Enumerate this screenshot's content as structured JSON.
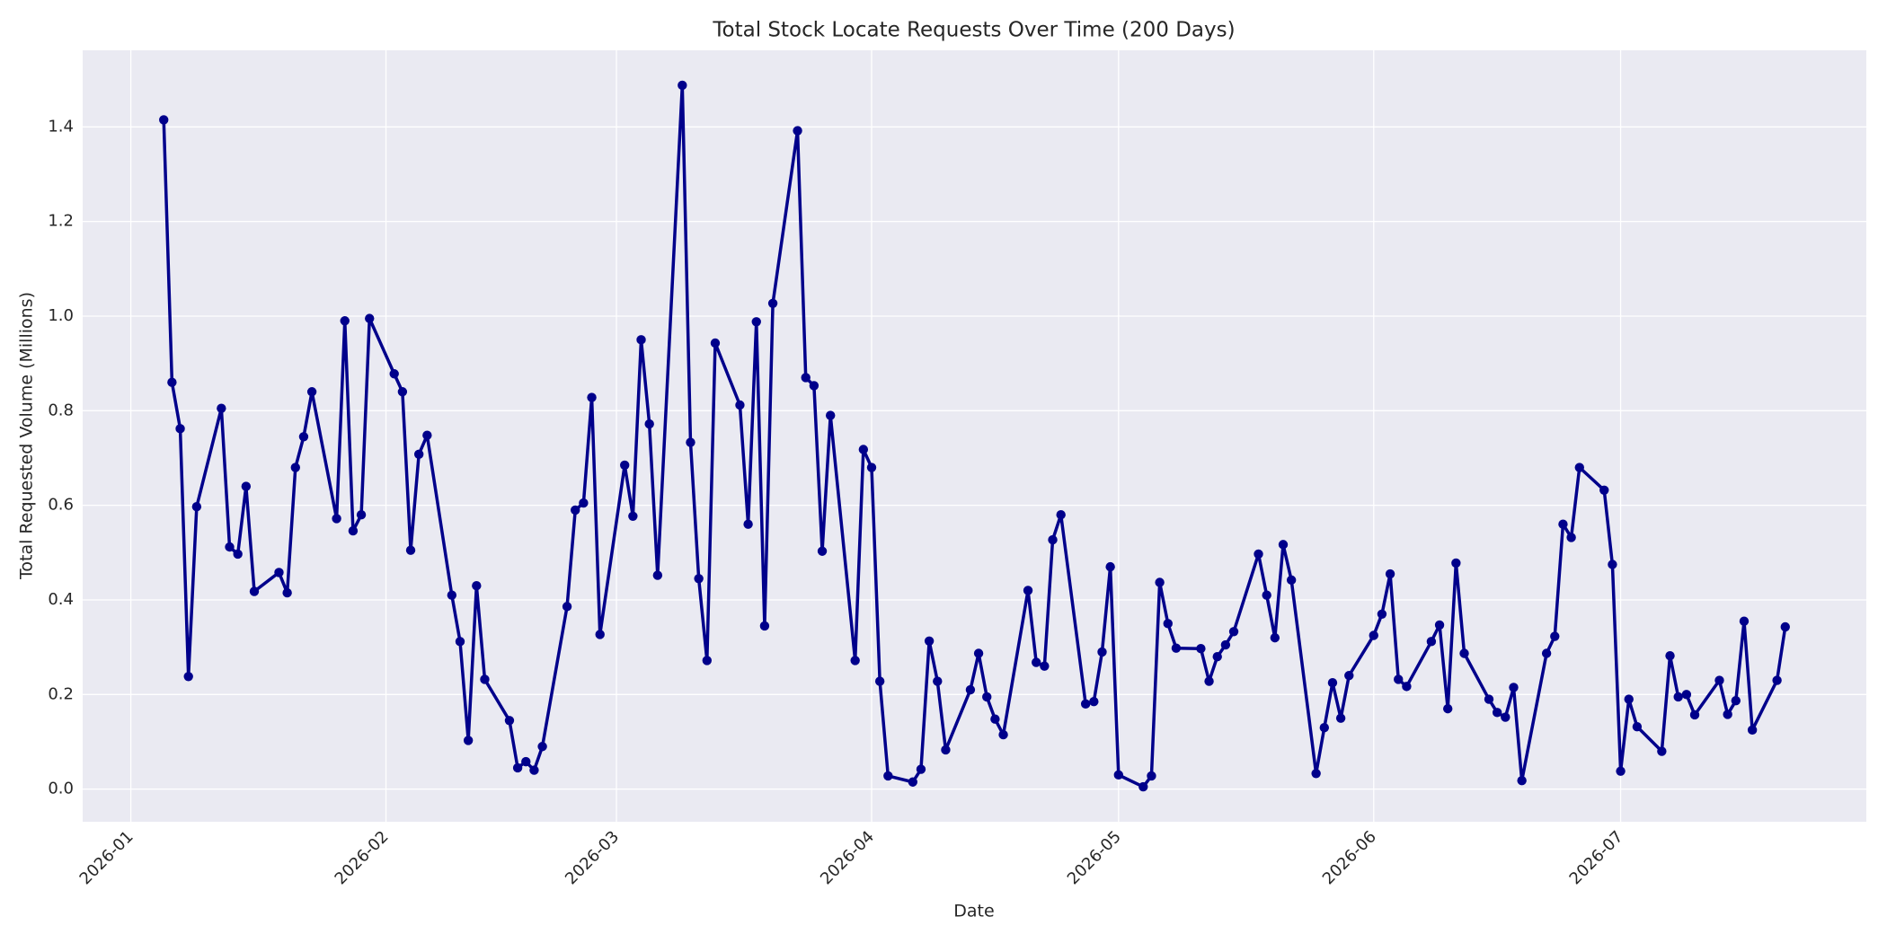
{
  "chart_data": {
    "type": "line",
    "title": "Total Stock Locate Requests Over Time (200 Days)",
    "x_label": "Date",
    "y_label": "Total Requested Volume (Millions)",
    "x": [
      4,
      5,
      6,
      7,
      8,
      11,
      12,
      13,
      14,
      15,
      18,
      19,
      20,
      21,
      22,
      25,
      26,
      27,
      28,
      29,
      32,
      33,
      34,
      35,
      36,
      39,
      40,
      41,
      42,
      43,
      46,
      47,
      48,
      49,
      50,
      53,
      54,
      55,
      56,
      57,
      60,
      61,
      62,
      63,
      64,
      67,
      68,
      69,
      70,
      71,
      74,
      75,
      76,
      77,
      78,
      81,
      82,
      83,
      84,
      85,
      88,
      89,
      90,
      91,
      92,
      95,
      96,
      97,
      98,
      99,
      102,
      103,
      104,
      105,
      106,
      109,
      110,
      111,
      112,
      113,
      116,
      117,
      118,
      119,
      120,
      123,
      124,
      125,
      126,
      127,
      130,
      131,
      132,
      133,
      134,
      137,
      138,
      139,
      140,
      141,
      144,
      145,
      146,
      147,
      148,
      151,
      152,
      153,
      154,
      155,
      158,
      159,
      160,
      161,
      162,
      165,
      166,
      167,
      168,
      169,
      172,
      173,
      174,
      175,
      176,
      179,
      180,
      181,
      182,
      183,
      186,
      187,
      188,
      189,
      190,
      193,
      194,
      195,
      196,
      197,
      200,
      201
    ],
    "series": [
      {
        "name": "Total Requested Volume",
        "color": "#00008b",
        "values": [
          1.415,
          0.86,
          0.762,
          0.238,
          0.597,
          0.805,
          0.512,
          0.497,
          0.64,
          0.418,
          0.458,
          0.415,
          0.68,
          0.745,
          0.84,
          0.572,
          0.99,
          0.546,
          0.58,
          0.995,
          0.878,
          0.84,
          0.505,
          0.708,
          0.748,
          0.41,
          0.312,
          0.103,
          0.43,
          0.232,
          0.145,
          0.045,
          0.058,
          0.04,
          0.09,
          0.386,
          0.59,
          0.605,
          0.828,
          0.327,
          0.685,
          0.577,
          0.95,
          0.772,
          0.452,
          1.488,
          0.733,
          0.445,
          0.272,
          0.943,
          0.812,
          0.56,
          0.988,
          0.345,
          1.027,
          1.392,
          0.87,
          0.853,
          0.503,
          0.79,
          0.272,
          0.718,
          0.68,
          0.228,
          0.028,
          0.015,
          0.042,
          0.313,
          0.228,
          0.083,
          0.21,
          0.287,
          0.195,
          0.148,
          0.115,
          0.42,
          0.268,
          0.26,
          0.527,
          0.58,
          0.18,
          0.185,
          0.29,
          0.47,
          0.03,
          0.005,
          0.028,
          0.437,
          0.35,
          0.298,
          0.297,
          0.228,
          0.28,
          0.305,
          0.333,
          0.497,
          0.41,
          0.32,
          0.517,
          0.442,
          0.033,
          0.13,
          0.225,
          0.15,
          0.24,
          0.325,
          0.37,
          0.455,
          0.232,
          0.217,
          0.312,
          0.347,
          0.17,
          0.478,
          0.287,
          0.19,
          0.162,
          0.152,
          0.215,
          0.018,
          0.287,
          0.323,
          0.56,
          0.532,
          0.68,
          0.632,
          0.475,
          0.038,
          0.19,
          0.132,
          0.08,
          0.282,
          0.195,
          0.2,
          0.157,
          0.23,
          0.158,
          0.187,
          0.355,
          0.125,
          0.23,
          0.343
        ]
      }
    ],
    "xlim": [
      -5.85,
      210.85
    ],
    "xticks": [
      {
        "value": 0,
        "label": "2026-01"
      },
      {
        "value": 31,
        "label": "2026-02"
      },
      {
        "value": 59,
        "label": "2026-03"
      },
      {
        "value": 90,
        "label": "2026-04"
      },
      {
        "value": 120,
        "label": "2026-05"
      },
      {
        "value": 151,
        "label": "2026-06"
      },
      {
        "value": 181,
        "label": "2026-07"
      }
    ],
    "ylim": [
      -0.069,
      1.562
    ],
    "yticks": [
      {
        "value": 0,
        "label": "0.0"
      },
      0.2,
      0.4,
      0.6,
      0.8,
      {
        "value": 1,
        "label": "1.0"
      },
      1.2,
      1.4
    ],
    "grid": true,
    "markers": true
  }
}
